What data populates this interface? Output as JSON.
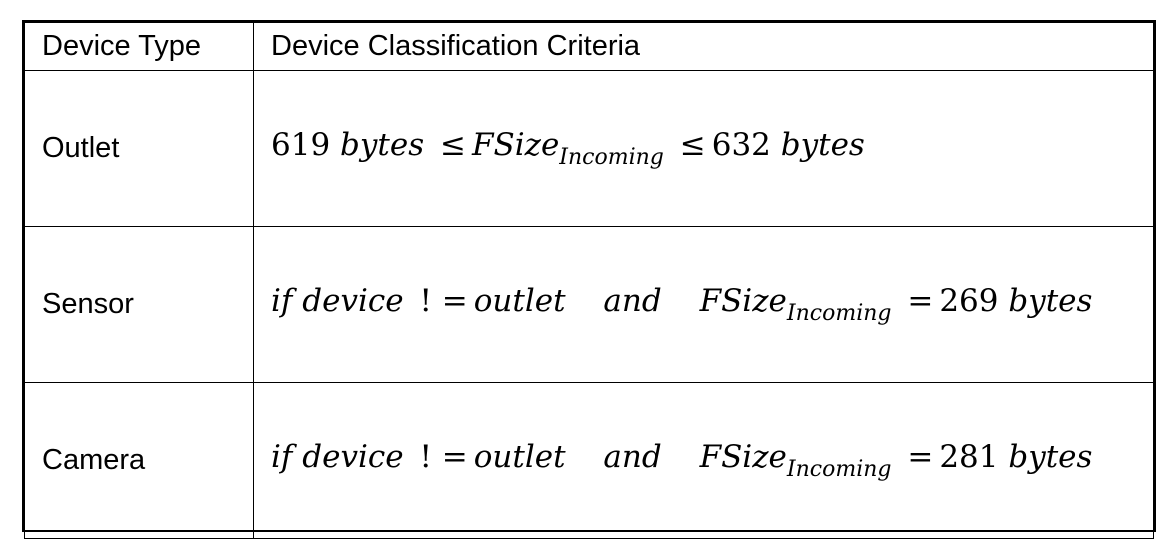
{
  "table": {
    "headers": {
      "device_type": "Device Type",
      "criteria": "Device Classification Criteria"
    },
    "rows": [
      {
        "device": "Outlet",
        "formula": {
          "lower_value": "619",
          "unit": "bytes",
          "op1": "≤",
          "variable": "FSize",
          "subscript": "Incoming",
          "op2": "≤",
          "upper_value": "632",
          "unit2": "bytes"
        }
      },
      {
        "device": "Sensor",
        "formula": {
          "if_kw": "if",
          "device_word": "device",
          "neq": "! =",
          "outlet_word": "outlet",
          "and_kw": "and",
          "variable": "FSize",
          "subscript": "Incoming",
          "eq": "=",
          "value": "269",
          "unit": "bytes"
        }
      },
      {
        "device": "Camera",
        "formula": {
          "if_kw": "if",
          "device_word": "device",
          "neq": "! =",
          "outlet_word": "outlet",
          "and_kw": "and",
          "variable": "FSize",
          "subscript": "Incoming",
          "eq": "=",
          "value": "281",
          "unit": "bytes"
        }
      }
    ]
  }
}
